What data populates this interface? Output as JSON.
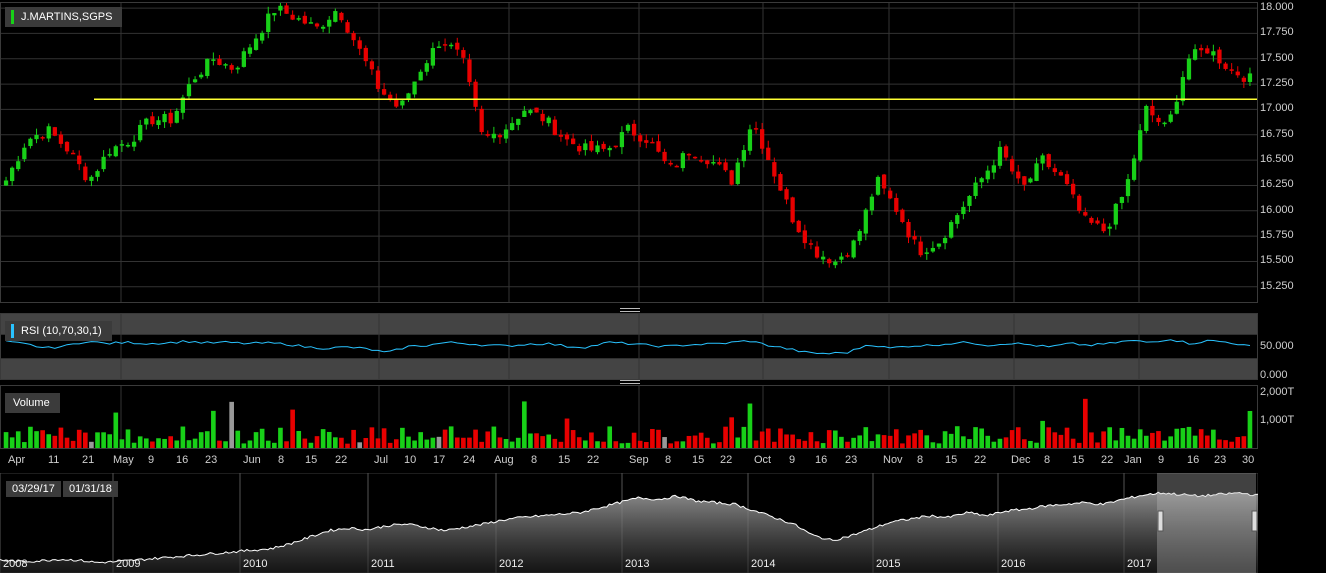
{
  "chart_data": {
    "type": "candlestick",
    "title": "J.MARTINS,SGPS",
    "price_axis": {
      "ylim": [
        15.1,
        18.05
      ],
      "ticks": [
        "18.000",
        "17.750",
        "17.500",
        "17.250",
        "17.000",
        "16.750",
        "16.500",
        "16.250",
        "16.000",
        "15.750",
        "15.500",
        "15.250"
      ]
    },
    "horizontal_line": {
      "value": 17.1,
      "color": "#ffff33"
    },
    "date_ticks": [
      "Apr",
      "11",
      "21",
      "May",
      "9",
      "16",
      "23",
      "Jun",
      "8",
      "15",
      "22",
      "Jul",
      "10",
      "17",
      "24",
      "Aug",
      "8",
      "15",
      "22",
      "Sep",
      "8",
      "15",
      "22",
      "Oct",
      "9",
      "16",
      "23",
      "Nov",
      "8",
      "15",
      "22",
      "Dec",
      "8",
      "15",
      "22",
      "Jan",
      "9",
      "16",
      "23",
      "30"
    ],
    "close_path": [
      16.3,
      16.7,
      16.8,
      16.6,
      16.3,
      16.6,
      16.7,
      16.9,
      16.9,
      17.3,
      17.5,
      17.4,
      17.7,
      18.0,
      17.9,
      17.8,
      18.0,
      17.6,
      17.2,
      17.0,
      17.4,
      17.7,
      17.5,
      16.7,
      16.8,
      17.0,
      16.9,
      16.7,
      16.6,
      16.6,
      16.8,
      16.7,
      16.4,
      16.6,
      16.5,
      16.3,
      16.9,
      16.4,
      15.9,
      15.6,
      15.5,
      15.7,
      16.3,
      16.0,
      15.6,
      15.7,
      16.0,
      16.3,
      16.6,
      16.2,
      16.5,
      16.3,
      15.9,
      15.8,
      16.2,
      17.0,
      16.8,
      17.5,
      17.6,
      17.4,
      17.3
    ],
    "rsi": {
      "label": "RSI (10,70,30,1)",
      "ticks": [
        "50.000",
        "0.000"
      ],
      "ylim": [
        0,
        100
      ],
      "upper": 70,
      "lower": 30,
      "color": "#29c3ff",
      "series": [
        58,
        54,
        47,
        51,
        59,
        55,
        57,
        55,
        56,
        59,
        56,
        57,
        55,
        56,
        54,
        49,
        47,
        49,
        46,
        39,
        50,
        52,
        57,
        55,
        52,
        51,
        54,
        55,
        50,
        49,
        57,
        55,
        52,
        50,
        53,
        54,
        56,
        60,
        52,
        46,
        39,
        38,
        40,
        54,
        47,
        51,
        52,
        55,
        57,
        52,
        56,
        53,
        49,
        55,
        52,
        55,
        60,
        57,
        63,
        55,
        60,
        57,
        50
      ]
    },
    "volume": {
      "label": "Volume",
      "ticks": [
        "2,000T",
        "1,000T"
      ],
      "ylim": [
        0,
        2200
      ]
    },
    "navigator": {
      "years": [
        "2008",
        "2009",
        "2010",
        "2011",
        "2012",
        "2013",
        "2014",
        "2015",
        "2016",
        "2017"
      ],
      "range_from": "03/29/17",
      "range_to": "01/31/18",
      "series": [
        0.06,
        0.04,
        0.05,
        0.07,
        0.06,
        0.03,
        0.04,
        0.06,
        0.08,
        0.1,
        0.12,
        0.14,
        0.16,
        0.18,
        0.2,
        0.26,
        0.34,
        0.42,
        0.45,
        0.43,
        0.48,
        0.5,
        0.46,
        0.42,
        0.46,
        0.5,
        0.55,
        0.58,
        0.6,
        0.62,
        0.64,
        0.7,
        0.76,
        0.82,
        0.8,
        0.84,
        0.78,
        0.76,
        0.74,
        0.66,
        0.58,
        0.5,
        0.36,
        0.3,
        0.36,
        0.44,
        0.52,
        0.56,
        0.6,
        0.58,
        0.64,
        0.6,
        0.66,
        0.68,
        0.72,
        0.74,
        0.76,
        0.74,
        0.8,
        0.85,
        0.88,
        0.86,
        0.84,
        0.86,
        0.88,
        0.85
      ]
    }
  },
  "colors": {
    "up": "#18d018",
    "down": "#e80000",
    "neutral": "#999999",
    "panel_bg": "#000000",
    "legend_bg": "#3b3b3b"
  }
}
